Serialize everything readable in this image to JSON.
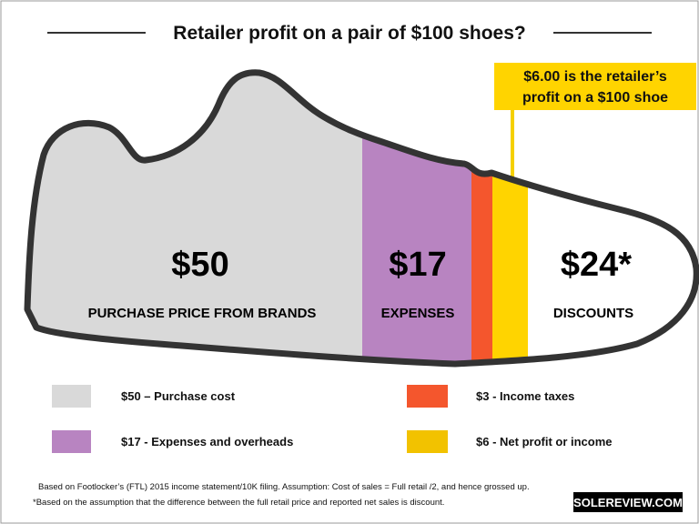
{
  "title": "Retailer profit on a pair of $100 shoes?",
  "callout": {
    "line1": "$6.00 is the retailer’s",
    "line2": "profit on a $100 shoe"
  },
  "segments": [
    {
      "amount": "$50",
      "label": "PURCHASE PRICE FROM BRANDS"
    },
    {
      "amount": "$17",
      "label": "EXPENSES"
    },
    {
      "amount": "$24*",
      "label": "DISCOUNTS"
    }
  ],
  "legend": [
    {
      "label": "$50 – Purchase cost"
    },
    {
      "label": "$3 - Income taxes"
    },
    {
      "label": "$17 - Expenses and overheads"
    },
    {
      "label": "$6 - Net profit or income"
    }
  ],
  "footnotes": [
    "Based on Footlocker’s (FTL) 2015 income statement/10K filing. Assumption: Cost of sales = Full retail /2, and hence grossed up.",
    "*Based on the assumption that the difference between the full retail price and reported  net sales is discount."
  ],
  "brand": "SOLEREVIEW.COM"
}
